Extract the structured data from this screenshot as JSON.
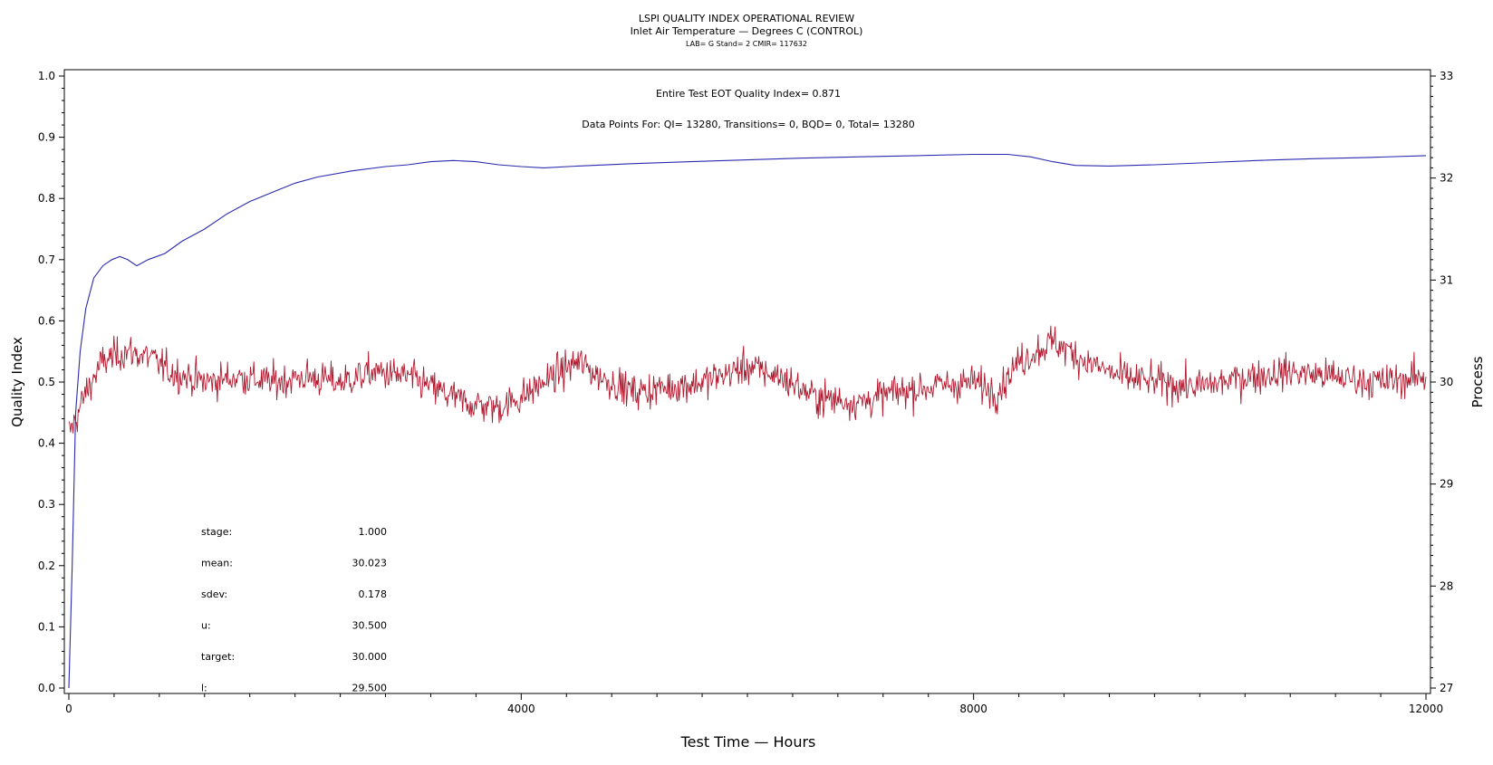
{
  "header": {
    "title": "LSPI QUALITY INDEX OPERATIONAL REVIEW",
    "subtitle": "Inlet Air Temperature — Degrees C (CONTROL)",
    "info": "LAB= G Stand= 2 CMIR= 117632"
  },
  "annotations": {
    "eot": "Entire Test EOT Quality Index=   0.871",
    "points": "Data Points For: QI= 13280, Transitions=     0, BQD=     0, Total= 13280"
  },
  "stats": [
    {
      "label": "stage:",
      "value": "1.000"
    },
    {
      "label": "mean:",
      "value": "30.023"
    },
    {
      "label": "sdev:",
      "value": "0.178"
    },
    {
      "label": "u:",
      "value": "30.500"
    },
    {
      "label": "target:",
      "value": "30.000"
    },
    {
      "label": "l:",
      "value": "29.500"
    }
  ],
  "chart_data": {
    "type": "line",
    "xlabel": "Test Time — Hours",
    "ylabel_left": "Quality Index",
    "ylabel_right": "Process",
    "xlim": [
      0,
      12000
    ],
    "ylim_left": [
      0,
      1.0
    ],
    "ylim_right": [
      27,
      33
    ],
    "x_ticks": [
      0,
      4000,
      8000,
      12000
    ],
    "y_left_ticks": [
      "0.0",
      "0.1",
      "0.2",
      "0.3",
      "0.4",
      "0.5",
      "0.6",
      "0.7",
      "0.8",
      "0.9",
      "1.0"
    ],
    "y_right_ticks": [
      "27",
      "28",
      "29",
      "30",
      "31",
      "32",
      "33"
    ],
    "grid": false,
    "series": [
      {
        "axis": "left",
        "color": "#2b2bb0",
        "points": [
          [
            0,
            0
          ],
          [
            30,
            0.2
          ],
          [
            60,
            0.45
          ],
          [
            100,
            0.55
          ],
          [
            150,
            0.62
          ],
          [
            220,
            0.67
          ],
          [
            300,
            0.69
          ],
          [
            380,
            0.7
          ],
          [
            450,
            0.705
          ],
          [
            520,
            0.7
          ],
          [
            600,
            0.69
          ],
          [
            700,
            0.7
          ],
          [
            850,
            0.71
          ],
          [
            1000,
            0.73
          ],
          [
            1200,
            0.75
          ],
          [
            1400,
            0.775
          ],
          [
            1600,
            0.795
          ],
          [
            1800,
            0.81
          ],
          [
            2000,
            0.825
          ],
          [
            2200,
            0.835
          ],
          [
            2500,
            0.845
          ],
          [
            2800,
            0.852
          ],
          [
            3000,
            0.855
          ],
          [
            3200,
            0.86
          ],
          [
            3400,
            0.862
          ],
          [
            3600,
            0.86
          ],
          [
            3800,
            0.855
          ],
          [
            4000,
            0.852
          ],
          [
            4200,
            0.85
          ],
          [
            4500,
            0.853
          ],
          [
            5000,
            0.857
          ],
          [
            5500,
            0.86
          ],
          [
            6000,
            0.863
          ],
          [
            6500,
            0.866
          ],
          [
            7000,
            0.868
          ],
          [
            7500,
            0.87
          ],
          [
            8000,
            0.872
          ],
          [
            8300,
            0.872
          ],
          [
            8500,
            0.868
          ],
          [
            8700,
            0.86
          ],
          [
            8900,
            0.854
          ],
          [
            9200,
            0.853
          ],
          [
            9600,
            0.855
          ],
          [
            10000,
            0.858
          ],
          [
            10500,
            0.862
          ],
          [
            11000,
            0.865
          ],
          [
            11500,
            0.867
          ],
          [
            12000,
            0.87
          ]
        ]
      },
      {
        "axis": "right",
        "color": "#b0182e",
        "mean_profile": [
          [
            0,
            29.5
          ],
          [
            50,
            29.6
          ],
          [
            150,
            29.9
          ],
          [
            300,
            30.2
          ],
          [
            500,
            30.3
          ],
          [
            700,
            30.25
          ],
          [
            900,
            30.1
          ],
          [
            1200,
            30.0
          ],
          [
            1500,
            30.05
          ],
          [
            1800,
            30.0
          ],
          [
            2100,
            30.05
          ],
          [
            2400,
            30.0
          ],
          [
            2700,
            30.1
          ],
          [
            3000,
            30.05
          ],
          [
            3200,
            29.95
          ],
          [
            3500,
            29.8
          ],
          [
            3800,
            29.75
          ],
          [
            4000,
            29.85
          ],
          [
            4200,
            30.0
          ],
          [
            4500,
            30.2
          ],
          [
            4700,
            30.05
          ],
          [
            5000,
            29.9
          ],
          [
            5300,
            29.95
          ],
          [
            5600,
            30.0
          ],
          [
            6000,
            30.15
          ],
          [
            6300,
            30.05
          ],
          [
            6600,
            29.85
          ],
          [
            7000,
            29.8
          ],
          [
            7300,
            29.9
          ],
          [
            7600,
            29.95
          ],
          [
            8000,
            30.0
          ],
          [
            8200,
            29.9
          ],
          [
            8400,
            30.2
          ],
          [
            8700,
            30.4
          ],
          [
            9000,
            30.2
          ],
          [
            9300,
            30.05
          ],
          [
            9600,
            30.0
          ],
          [
            10000,
            29.95
          ],
          [
            10400,
            30.05
          ],
          [
            10800,
            30.1
          ],
          [
            11200,
            30.05
          ],
          [
            11600,
            30.0
          ],
          [
            12000,
            30.05
          ]
        ],
        "noise_sd": 0.12,
        "n_points": 1600
      }
    ]
  }
}
